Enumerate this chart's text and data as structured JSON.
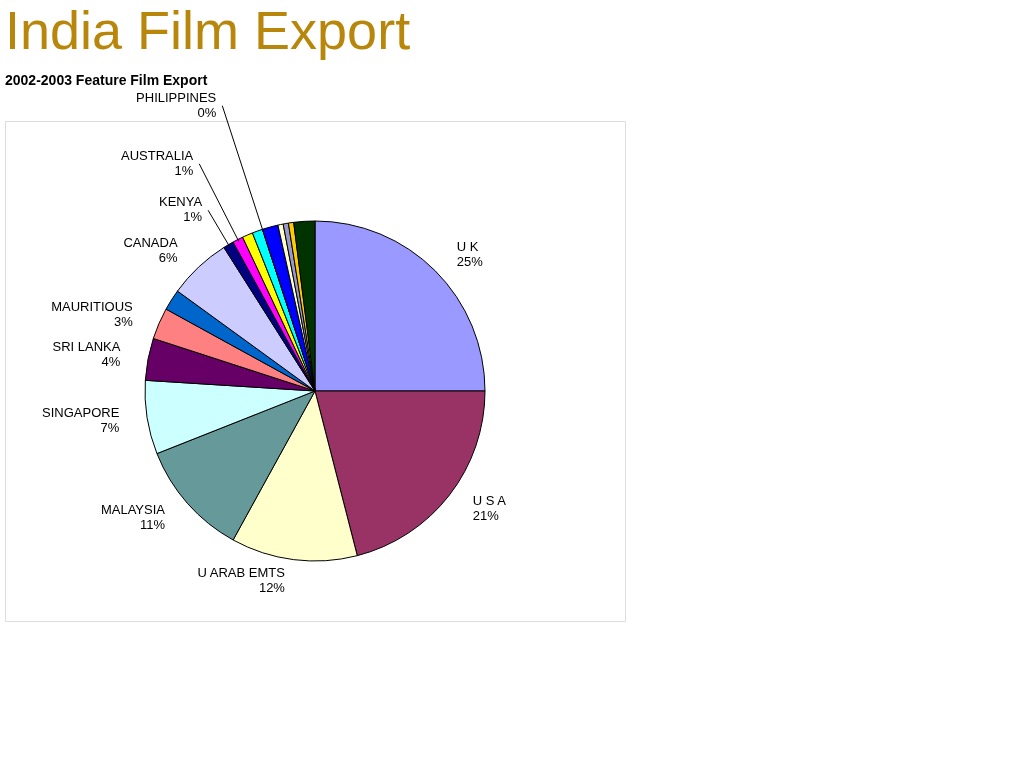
{
  "chart_data": {
    "type": "pie",
    "title": "India Film Export",
    "subtitle": "2002-2003 Feature Film Export",
    "categories": [
      "U K",
      "U S A",
      "U ARAB EMTS",
      "MALAYSIA",
      "SINGAPORE",
      "SRI LANKA",
      "MAURITIOUS",
      null,
      "CANADA",
      "KENYA",
      "AUSTRALIA",
      null,
      null,
      "PHILIPPINES",
      null,
      null,
      null,
      null,
      null
    ],
    "values": [
      25,
      21,
      12,
      11,
      7,
      4,
      3,
      2,
      6,
      1,
      1,
      1,
      1,
      0,
      1.5,
      0.5,
      0.5,
      0.5,
      2
    ],
    "value_labels": [
      "25%",
      "21%",
      "12%",
      "11%",
      "7%",
      "4%",
      "3%",
      null,
      "6%",
      "1%",
      "1%",
      null,
      null,
      "0%",
      null,
      null,
      null,
      null,
      null
    ],
    "colors": [
      "#9999ff",
      "#993366",
      "#ffffcc",
      "#669999",
      "#ccffff",
      "#660066",
      "#ff8080",
      "#0066cc",
      "#ccccff",
      "#000080",
      "#ff00ff",
      "#ffff00",
      "#00ffff",
      "#800000",
      "#0000ff",
      "#ffffcc",
      "#9999cc",
      "#ffcc00",
      "#003300"
    ],
    "legend": false
  }
}
